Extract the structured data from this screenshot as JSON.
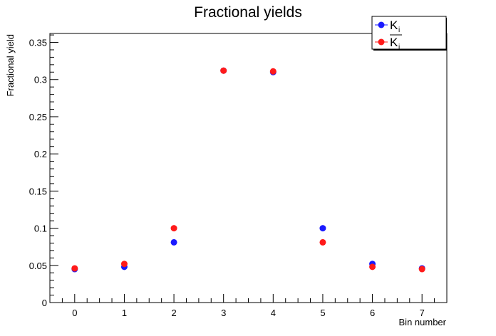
{
  "chart_data": {
    "type": "scatter",
    "title": "Fractional yields",
    "xlabel": "Bin number",
    "ylabel": "Fractional yield",
    "xlim": [
      -0.5,
      7.5
    ],
    "ylim": [
      0,
      0.362
    ],
    "x": [
      0,
      1,
      2,
      3,
      4,
      5,
      6,
      7
    ],
    "x_ticks": [
      "0",
      "1",
      "2",
      "3",
      "4",
      "5",
      "6",
      "7"
    ],
    "y_ticks": [
      {
        "value": 0,
        "label": "0"
      },
      {
        "value": 0.05,
        "label": "0.05"
      },
      {
        "value": 0.1,
        "label": "0.1"
      },
      {
        "value": 0.15,
        "label": "0.15"
      },
      {
        "value": 0.2,
        "label": "0.2"
      },
      {
        "value": 0.25,
        "label": "0.25"
      },
      {
        "value": 0.3,
        "label": "0.3"
      },
      {
        "value": 0.35,
        "label": "0.35"
      }
    ],
    "series": [
      {
        "name": "K",
        "subscript": "i",
        "overline": false,
        "color": "#1a1aff",
        "values": [
          0.045,
          0.048,
          0.081,
          0.312,
          0.31,
          0.1,
          0.052,
          0.046
        ]
      },
      {
        "name": "K",
        "subscript": "i",
        "overline": true,
        "color": "#ff1a1a",
        "values": [
          0.046,
          0.052,
          0.1,
          0.312,
          0.311,
          0.081,
          0.048,
          0.045
        ]
      }
    ],
    "legend_position": "top-right",
    "grid": false
  }
}
